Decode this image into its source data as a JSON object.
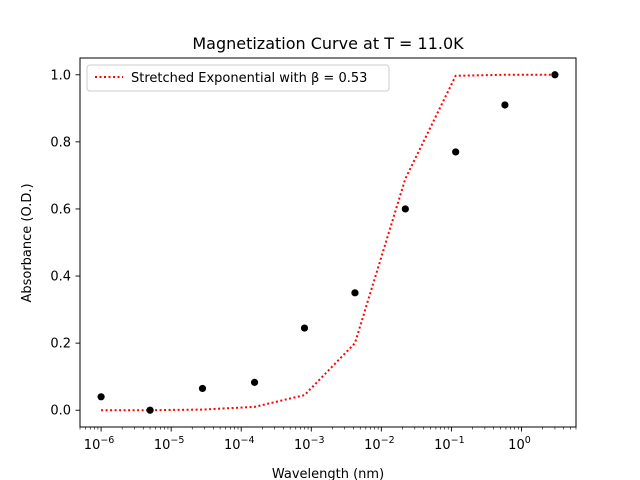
{
  "chart_data": {
    "type": "scatter",
    "title": "Magnetization Curve at T = 11.0K",
    "xlabel": "Wavelength (nm)",
    "ylabel": "Absorbance (O.D.)",
    "x_scale": "log",
    "xlim": [
      5e-07,
      6
    ],
    "ylim": [
      -0.05,
      1.05
    ],
    "x_ticks": [
      {
        "value": 1e-06,
        "base": "10",
        "exp": "−6"
      },
      {
        "value": 1e-05,
        "base": "10",
        "exp": "−5"
      },
      {
        "value": 0.0001,
        "base": "10",
        "exp": "−4"
      },
      {
        "value": 0.001,
        "base": "10",
        "exp": "−3"
      },
      {
        "value": 0.01,
        "base": "10",
        "exp": "−2"
      },
      {
        "value": 0.1,
        "base": "10",
        "exp": "−1"
      },
      {
        "value": 1,
        "base": "10",
        "exp": "0"
      }
    ],
    "y_ticks": [
      "0.0",
      "0.2",
      "0.4",
      "0.6",
      "0.8",
      "1.0"
    ],
    "grid": false,
    "legend_position": "top-left",
    "series": [
      {
        "kind": "scatter",
        "color": "#000000",
        "x": [
          1e-06,
          5e-06,
          2.8e-05,
          0.000155,
          0.0008,
          0.0042,
          0.022,
          0.115,
          0.58,
          3.0
        ],
        "y": [
          0.04,
          0.0,
          0.065,
          0.083,
          0.245,
          0.35,
          0.6,
          0.77,
          0.91,
          1.0
        ]
      },
      {
        "kind": "line",
        "name": "Stretched Exponential with β = 0.53",
        "color": "#ff0000",
        "style": "dotted",
        "x": [
          1e-06,
          5e-06,
          2.8e-05,
          0.000155,
          0.0008,
          0.0042,
          0.022,
          0.115,
          0.58,
          3.0
        ],
        "y": [
          0.0,
          0.0,
          0.002,
          0.01,
          0.045,
          0.2,
          0.69,
          0.997,
          1.0,
          1.0
        ]
      }
    ]
  }
}
